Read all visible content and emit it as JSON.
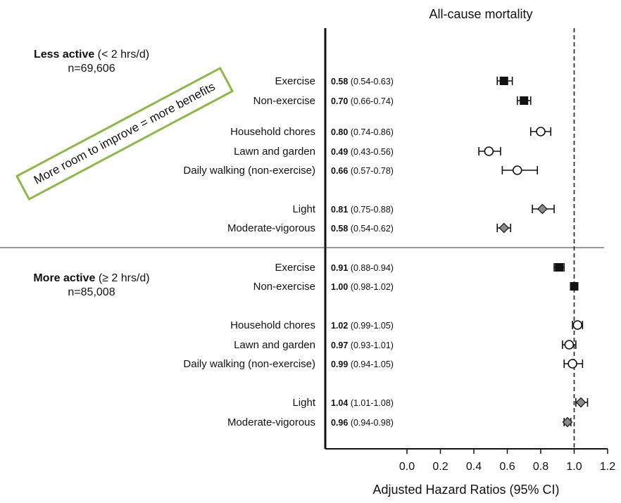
{
  "chart_data": {
    "type": "scatter",
    "title": "All-cause mortality",
    "xlabel": "Adjusted Hazard Ratios (95% CI)",
    "xlim": [
      0.0,
      1.2
    ],
    "xticks": [
      "0.0",
      "0.2",
      "0.4",
      "0.6",
      "0.8",
      "1.0",
      "1.2"
    ],
    "reference_line": 1.0,
    "groups": [
      {
        "name_bold": "Less active",
        "name_rest": " (< 2 hrs/d)",
        "n": "n=69,606",
        "rows": [
          {
            "label": "Exercise",
            "hr": "0.58",
            "ci": "(0.54-0.63)",
            "est": 0.58,
            "lo": 0.54,
            "hi": 0.63,
            "marker": "square"
          },
          {
            "label": "Non-exercise",
            "hr": "0.70",
            "ci": "(0.66-0.74)",
            "est": 0.7,
            "lo": 0.66,
            "hi": 0.74,
            "marker": "square"
          },
          {
            "label": "Household chores",
            "hr": "0.80",
            "ci": "(0.74-0.86)",
            "est": 0.8,
            "lo": 0.74,
            "hi": 0.86,
            "marker": "circle"
          },
          {
            "label": "Lawn and garden",
            "hr": "0.49",
            "ci": "(0.43-0.56)",
            "est": 0.49,
            "lo": 0.43,
            "hi": 0.56,
            "marker": "circle"
          },
          {
            "label": "Daily walking (non-exercise)",
            "hr": "0.66",
            "ci": "(0.57-0.78)",
            "est": 0.66,
            "lo": 0.57,
            "hi": 0.78,
            "marker": "circle"
          },
          {
            "label": "Light",
            "hr": "0.81",
            "ci": "(0.75-0.88)",
            "est": 0.81,
            "lo": 0.75,
            "hi": 0.88,
            "marker": "diamond"
          },
          {
            "label": "Moderate-vigorous",
            "hr": "0.58",
            "ci": "(0.54-0.62)",
            "est": 0.58,
            "lo": 0.54,
            "hi": 0.62,
            "marker": "diamond"
          }
        ]
      },
      {
        "name_bold": "More active",
        "name_rest": " (≥ 2 hrs/d)",
        "n": "n=85,008",
        "rows": [
          {
            "label": "Exercise",
            "hr": "0.91",
            "ci": "(0.88-0.94)",
            "est": 0.91,
            "lo": 0.88,
            "hi": 0.94,
            "marker": "square"
          },
          {
            "label": "Non-exercise",
            "hr": "1.00",
            "ci": "(0.98-1.02)",
            "est": 1.0,
            "lo": 0.98,
            "hi": 1.02,
            "marker": "square"
          },
          {
            "label": "Household chores",
            "hr": "1.02",
            "ci": "(0.99-1.05)",
            "est": 1.02,
            "lo": 0.99,
            "hi": 1.05,
            "marker": "circle"
          },
          {
            "label": "Lawn and garden",
            "hr": "0.97",
            "ci": "(0.93-1.01)",
            "est": 0.97,
            "lo": 0.93,
            "hi": 1.01,
            "marker": "circle"
          },
          {
            "label": "Daily walking (non-exercise)",
            "hr": "0.99",
            "ci": "(0.94-1.05)",
            "est": 0.99,
            "lo": 0.94,
            "hi": 1.05,
            "marker": "circle"
          },
          {
            "label": "Light",
            "hr": "1.04",
            "ci": "(1.01-1.08)",
            "est": 1.04,
            "lo": 1.01,
            "hi": 1.08,
            "marker": "diamond"
          },
          {
            "label": "Moderate-vigorous",
            "hr": "0.96",
            "ci": "(0.94-0.98)",
            "est": 0.96,
            "lo": 0.94,
            "hi": 0.98,
            "marker": "diamond"
          }
        ]
      }
    ],
    "annotation": "More room to improve = more benefits",
    "colors": {
      "square": "#111111",
      "circle": "#ffffff",
      "diamond": "#8a8a8a",
      "callout_border": "#8fb84a"
    }
  }
}
